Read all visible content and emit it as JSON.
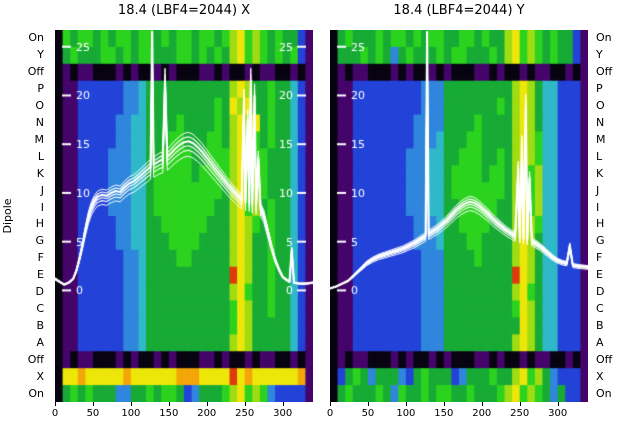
{
  "palette": {
    "k": "#070310",
    "p": "#44046a",
    "b": "#2242d8",
    "B": "#2f86dc",
    "c": "#2eb8c8",
    "g": "#17ab35",
    "G": "#2bd31e",
    "l": "#9fdc12",
    "y": "#ede609",
    "o": "#f4a509",
    "r": "#dd3b0a"
  },
  "chart_data": [
    {
      "type": "heatmap",
      "title": "18.4 (LBF4=2044) X",
      "ylabel": "Dipole",
      "x_range": [
        0,
        340
      ],
      "x_ticks": [
        0,
        50,
        100,
        150,
        200,
        250,
        300
      ],
      "y_categories": [
        "On",
        "Y",
        "Off",
        "P",
        "O",
        "N",
        "M",
        "L",
        "K",
        "J",
        "I",
        "H",
        "G",
        "F",
        "E",
        "D",
        "C",
        "B",
        "A",
        "Off",
        "X",
        "On"
      ],
      "inner_value_axis": {
        "range": [
          0,
          25
        ],
        "ticks_left": [
          25,
          20,
          15,
          10,
          5,
          0
        ],
        "ticks_right": [
          25,
          20,
          15,
          10,
          5,
          0
        ]
      },
      "heatmap_rows": [
        "kGgGGgGgGGgGGgGgGGgGGgGlyGlGgGggbp",
        "kgGgggGGgGgGGgggGGgGgGglyGlGgGgGbp",
        "kpkppkkkpkpkkpkpkkkppkpkkpkppkkpkp",
        "kppbbbbbbBBcggggggggggglylggGggcbp",
        "kppbbbbbbBBcgggggggggGgylyggGggcbp",
        "kppbbbbbBBccggggGggggGglylygGggcbp",
        "kppbbbbbBBccgggGGgggGGglylGgGggcbp",
        "kppbbbbBBBccggGGGGggGGGlylGGgggcbp",
        "kppbbbbBBBccgGGGGGgGGGGlyGlGgggcbp",
        "kppbbbbBBBccgGGGGGGGGGglyGlGgggcbp",
        "kppbbbbBBBccgGGGGGGGGgglyGlgGggcbp",
        "kppbbbbbBBccggGGGGGGggglylGgGggcbp",
        "kppbbbbbBBccgggGGGGgggglylggGggcbp",
        "kppbbbbbbBBcggggGGggggglylggGggcbp",
        "kppbbbbbbBBcgggggggggggrylggGggcbp",
        "kppbbbbbbBBcggggggggggglyGggGggcbp",
        "kppbbbbbbBBcgggggggggggGylggGggcbp",
        "kppbbbbbbBBcgggggggggggGylgggggcbp",
        "kppbbbbbbBBcggggggggggglylgggggcbp",
        "kpkppkkkpkpkkpkpkkkppkpkkpkppkkpkp",
        "kyyoyyyyyoyyyyyyoooyyyyryoyyyyyyop",
        "kgGgGgggBBggGgGGgbBgggGlyGlGBbbbbp"
      ],
      "overlay": {
        "color": "#ffffff",
        "n_traces": 6,
        "points": [
          [
            0,
            1.2
          ],
          [
            6,
            0.9
          ],
          [
            12,
            0.6
          ],
          [
            18,
            0.8
          ],
          [
            24,
            1.2
          ],
          [
            28,
            2
          ],
          [
            32,
            3.2
          ],
          [
            36,
            4.6
          ],
          [
            40,
            6.2
          ],
          [
            44,
            7.6
          ],
          [
            48,
            8.6
          ],
          [
            52,
            9.2
          ],
          [
            56,
            9.6
          ],
          [
            62,
            9.8
          ],
          [
            68,
            9.7
          ],
          [
            74,
            10
          ],
          [
            80,
            10.2
          ],
          [
            86,
            10.1
          ],
          [
            92,
            10.6
          ],
          [
            98,
            11
          ],
          [
            104,
            11.2
          ],
          [
            110,
            11.6
          ],
          [
            116,
            12
          ],
          [
            122,
            12.4
          ],
          [
            126,
            12.7
          ],
          [
            128,
            26.5
          ],
          [
            130,
            12.9
          ],
          [
            134,
            13.1
          ],
          [
            138,
            13.3
          ],
          [
            142,
            13.4
          ],
          [
            145,
            21.5
          ],
          [
            148,
            13.7
          ],
          [
            152,
            14
          ],
          [
            158,
            14.5
          ],
          [
            164,
            14.9
          ],
          [
            170,
            15.2
          ],
          [
            176,
            15.3
          ],
          [
            182,
            15.1
          ],
          [
            188,
            14.7
          ],
          [
            194,
            14.2
          ],
          [
            200,
            13.6
          ],
          [
            206,
            13
          ],
          [
            212,
            12.4
          ],
          [
            218,
            11.8
          ],
          [
            224,
            11.2
          ],
          [
            230,
            10.6
          ],
          [
            236,
            10.1
          ],
          [
            242,
            9.6
          ],
          [
            246,
            9.3
          ],
          [
            249,
            19.5
          ],
          [
            251,
            9.1
          ],
          [
            254,
            17.5
          ],
          [
            256,
            9
          ],
          [
            258,
            21.5
          ],
          [
            260,
            8.8
          ],
          [
            263,
            20
          ],
          [
            265,
            8.7
          ],
          [
            268,
            13.5
          ],
          [
            271,
            8.4
          ],
          [
            275,
            7.8
          ],
          [
            280,
            6.2
          ],
          [
            285,
            4.6
          ],
          [
            290,
            3.2
          ],
          [
            295,
            2.2
          ],
          [
            300,
            1.4
          ],
          [
            305,
            1.1
          ],
          [
            309,
            0.9
          ],
          [
            312,
            4.2
          ],
          [
            315,
            0.8
          ],
          [
            322,
            0.7
          ],
          [
            330,
            0.7
          ],
          [
            340,
            0.8
          ]
        ]
      }
    },
    {
      "type": "heatmap",
      "title": "18.4 (LBF4=2044) Y",
      "ylabel": "Dipole",
      "x_range": [
        0,
        340
      ],
      "x_ticks": [
        0,
        50,
        100,
        150,
        200,
        250,
        300
      ],
      "y_categories": [
        "On",
        "Y",
        "Off",
        "P",
        "O",
        "N",
        "M",
        "L",
        "K",
        "J",
        "I",
        "H",
        "G",
        "F",
        "E",
        "D",
        "C",
        "B",
        "A",
        "Off",
        "X",
        "On"
      ],
      "inner_value_axis": {
        "range": [
          0,
          25
        ],
        "ticks_left": [
          25,
          20,
          15,
          10,
          5,
          0
        ],
        "ticks_right": []
      },
      "heatmap_rows": [
        "kgGgggGgGGgGgGGggGGgGgglyGlGgGggbp",
        "kgggGgGgBgGgggGgGGgggGglyGlGgGggbp",
        "kpkppkkkpkpkkpkpkkkppkpkkpkppkkpkp",
        "kppbbbbbbbbbBBBggggggggglylgccbbbp",
        "kppbbbbbbbbbBBBgggggggGglylgccbbbp",
        "kppbbbbbbbbBBBBggggGgggglylgccbbbp",
        "kppbbbbbbbbBBBcgggGGgggglylGccbbbp",
        "kppbbbbbbbBBBccggGGGggGglylGccbbbp",
        "kppbbbbbbbBBBccgGGGGgGGglyGlccbbbp",
        "kppbbbbbbbBBBccgGGGGGGGglyGlccbbbp",
        "kppbbbbbbbBBBccggGGGGGgglyGlccbbbp",
        "kppbbbbbbbbBBBcggGGGGggglylGccbbbp",
        "kppbbbbbbbbBBBcgggGGgggglylgccbbbp",
        "kppbbbbbbbbbBBBggggGgggglylgccbbbp",
        "kppbbbbbbbbbBBBgggggggggrylgccbbbp",
        "kppbbbbbbbbbBBBggggggggglyGgccbbbp",
        "kppbbbbbbbbbBBBgggggggggGylgccbbbp",
        "kppbbbbbbbbbBBBggggggggggylgccbbbp",
        "kppbbbbbbbbbBBBggggggggglylgccbbbp",
        "kpkppkkkpkpkkpkpkkkppkpkkpkppkkpkp",
        "kbgGgBgggBbgGgggbBgggGgglyGlgBbbbp",
        "kgGgggGgBGggGgGGggGgggGlyGlGgBgbbp"
      ],
      "overlay": {
        "color": "#ffffff",
        "n_traces": 6,
        "points": [
          [
            0,
            0.2
          ],
          [
            8,
            0.4
          ],
          [
            16,
            0.7
          ],
          [
            24,
            1
          ],
          [
            32,
            1.6
          ],
          [
            40,
            2.2
          ],
          [
            48,
            2.8
          ],
          [
            56,
            3.2
          ],
          [
            64,
            3.5
          ],
          [
            72,
            3.7
          ],
          [
            80,
            3.9
          ],
          [
            88,
            4.1
          ],
          [
            96,
            4.3
          ],
          [
            104,
            4.6
          ],
          [
            112,
            4.9
          ],
          [
            120,
            5.3
          ],
          [
            126,
            5.6
          ],
          [
            128,
            26.5
          ],
          [
            130,
            5.8
          ],
          [
            136,
            6.1
          ],
          [
            142,
            6.4
          ],
          [
            148,
            6.8
          ],
          [
            154,
            7.2
          ],
          [
            160,
            7.7
          ],
          [
            166,
            8.2
          ],
          [
            172,
            8.6
          ],
          [
            178,
            8.9
          ],
          [
            184,
            9.1
          ],
          [
            190,
            9
          ],
          [
            196,
            8.7
          ],
          [
            202,
            8.3
          ],
          [
            208,
            7.9
          ],
          [
            214,
            7.4
          ],
          [
            220,
            7
          ],
          [
            226,
            6.6
          ],
          [
            232,
            6.2
          ],
          [
            238,
            5.9
          ],
          [
            244,
            5.6
          ],
          [
            248,
            12.5
          ],
          [
            250,
            5.4
          ],
          [
            253,
            15
          ],
          [
            255,
            5.3
          ],
          [
            258,
            19
          ],
          [
            260,
            5.2
          ],
          [
            263,
            11.5
          ],
          [
            266,
            5.1
          ],
          [
            270,
            4.9
          ],
          [
            276,
            4.6
          ],
          [
            282,
            4.2
          ],
          [
            288,
            3.8
          ],
          [
            294,
            3.4
          ],
          [
            300,
            3.1
          ],
          [
            306,
            2.9
          ],
          [
            312,
            2.8
          ],
          [
            316,
            4.6
          ],
          [
            320,
            2.6
          ],
          [
            328,
            2.5
          ],
          [
            340,
            2.4
          ]
        ]
      }
    }
  ]
}
